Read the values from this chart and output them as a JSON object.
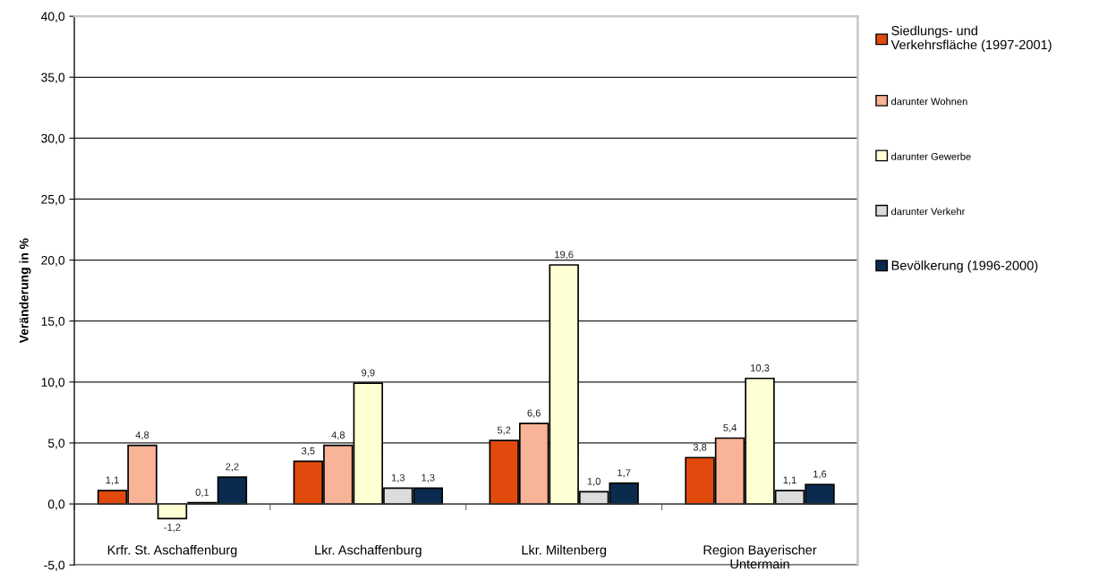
{
  "chart_data": {
    "type": "bar",
    "ylabel": "Veränderung in %",
    "categories": [
      "Krfr. St. Aschaffenburg",
      "Lkr. Aschaffenburg",
      "Lkr. Miltenberg",
      "Region Bayerischer\nUntermain"
    ],
    "series": [
      {
        "name": "Siedlungs- und\nVerkehrsfläche (1997-2001)",
        "color": "#e04a0c",
        "values": [
          1.1,
          3.5,
          5.2,
          3.8
        ],
        "value_labels": [
          "1,1",
          "3,5",
          "5,2",
          "3,8"
        ]
      },
      {
        "name": "darunter Wohnen",
        "color": "#f9b396",
        "values": [
          4.8,
          4.8,
          6.6,
          5.4
        ],
        "value_labels": [
          "4,8",
          "4,8",
          "6,6",
          "5,4"
        ]
      },
      {
        "name": "darunter Gewerbe",
        "color": "#ffffd4",
        "values": [
          -1.2,
          9.9,
          19.6,
          10.3
        ],
        "value_labels": [
          "-1,2",
          "9,9",
          "19,6",
          "10,3"
        ]
      },
      {
        "name": "darunter Verkehr",
        "color": "#dcdcdc",
        "values": [
          0.1,
          1.3,
          1.0,
          1.1
        ],
        "value_labels": [
          "0,1",
          "1,3",
          "1,0",
          "1,1"
        ]
      },
      {
        "name": "Bevölkerung (1996-2000)",
        "color": "#0a2a4e",
        "values": [
          2.2,
          1.3,
          1.7,
          1.6
        ],
        "value_labels": [
          "2,2",
          "1,3",
          "1,7",
          "1,6"
        ]
      }
    ],
    "ylim": [
      -5,
      40
    ],
    "yticks": [
      {
        "value": -5,
        "label": "-5,0"
      },
      {
        "value": 0,
        "label": "0,0"
      },
      {
        "value": 5,
        "label": "5,0"
      },
      {
        "value": 10,
        "label": "10,0"
      },
      {
        "value": 15,
        "label": "15,0"
      },
      {
        "value": 20,
        "label": "20,0"
      },
      {
        "value": 25,
        "label": "25,0"
      },
      {
        "value": 30,
        "label": "30,0"
      },
      {
        "value": 35,
        "label": "35,0"
      },
      {
        "value": 40,
        "label": "40,0"
      }
    ],
    "grid": "y",
    "legend": "right"
  }
}
